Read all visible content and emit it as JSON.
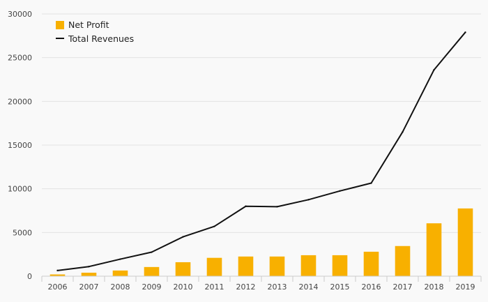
{
  "chart_data": {
    "type": "bar",
    "categories": [
      "2006",
      "2007",
      "2008",
      "2009",
      "2010",
      "2011",
      "2012",
      "2013",
      "2014",
      "2015",
      "2016",
      "2017",
      "2018",
      "2019"
    ],
    "series": [
      {
        "name": "Net Profit",
        "type": "bar",
        "color": "#f8b000",
        "values": [
          200,
          400,
          650,
          1050,
          1600,
          2100,
          2250,
          2250,
          2400,
          2400,
          2800,
          3450,
          6050,
          7750
        ]
      },
      {
        "name": "Total Revenues",
        "type": "line",
        "color": "#111111",
        "values": [
          650,
          1100,
          1950,
          2750,
          4500,
          5700,
          8000,
          7950,
          8750,
          9750,
          10650,
          16500,
          23600,
          27900
        ]
      }
    ],
    "ylim": [
      0,
      30000
    ],
    "yticks": [
      0,
      5000,
      10000,
      15000,
      20000,
      25000,
      30000
    ],
    "grid": true,
    "legend": "top-left"
  }
}
